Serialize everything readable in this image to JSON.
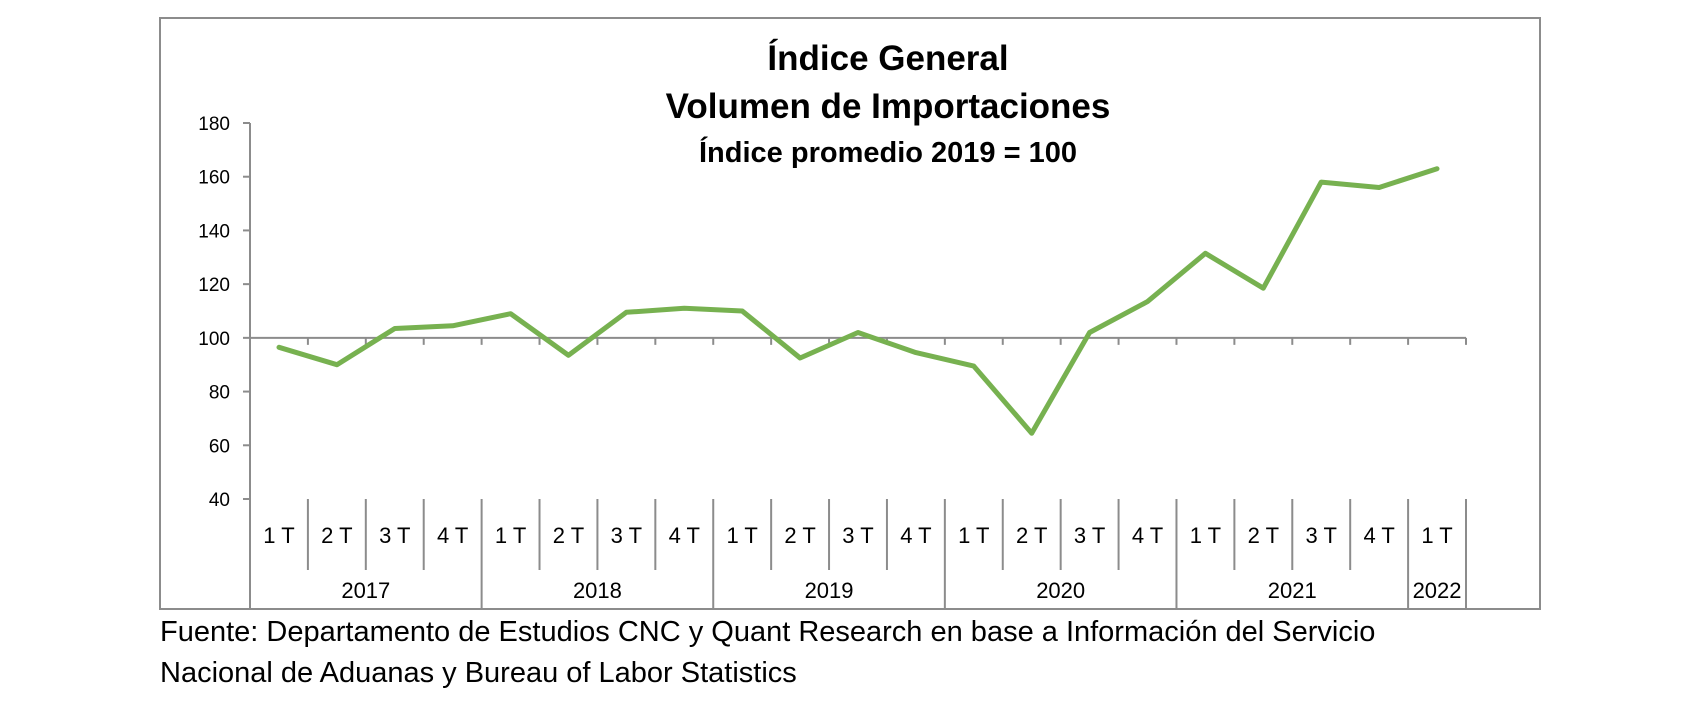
{
  "chart_data": {
    "type": "line",
    "title": "Índice General",
    "subtitle": "Volumen de Importaciones",
    "subtitle2": "Índice promedio 2019 = 100",
    "xlabel": "",
    "ylabel": "",
    "ylim": [
      40,
      180
    ],
    "yticks": [
      "180",
      "160",
      "140",
      "120",
      "100",
      "80",
      "60",
      "40"
    ],
    "categories": [
      "1 T",
      "2 T",
      "3 T",
      "4 T",
      "1 T",
      "2 T",
      "3 T",
      "4 T",
      "1 T",
      "2 T",
      "3 T",
      "4 T",
      "1 T",
      "2 T",
      "3 T",
      "4 T",
      "1 T",
      "2 T",
      "3 T",
      "4 T",
      "1 T"
    ],
    "years": [
      {
        "label": "2017",
        "quarters": 4
      },
      {
        "label": "2018",
        "quarters": 4
      },
      {
        "label": "2019",
        "quarters": 4
      },
      {
        "label": "2020",
        "quarters": 4
      },
      {
        "label": "2021",
        "quarters": 4
      },
      {
        "label": "2022",
        "quarters": 1
      }
    ],
    "series": [
      {
        "values": [
          96.5,
          90,
          103.5,
          104.5,
          109,
          93.5,
          109.5,
          111,
          110,
          92.5,
          102,
          94.5,
          89.5,
          64.5,
          102,
          113.5,
          131.5,
          118.5,
          158,
          156,
          163
        ]
      }
    ],
    "grid": false,
    "legend": "none",
    "line_color": "#77b150",
    "axis_color": "#8c8c8c"
  },
  "source": {
    "line1": "Fuente: Departamento de Estudios CNC y Quant Research en base a Información del Servicio",
    "line2": "Nacional de Aduanas y Bureau of Labor Statistics"
  }
}
